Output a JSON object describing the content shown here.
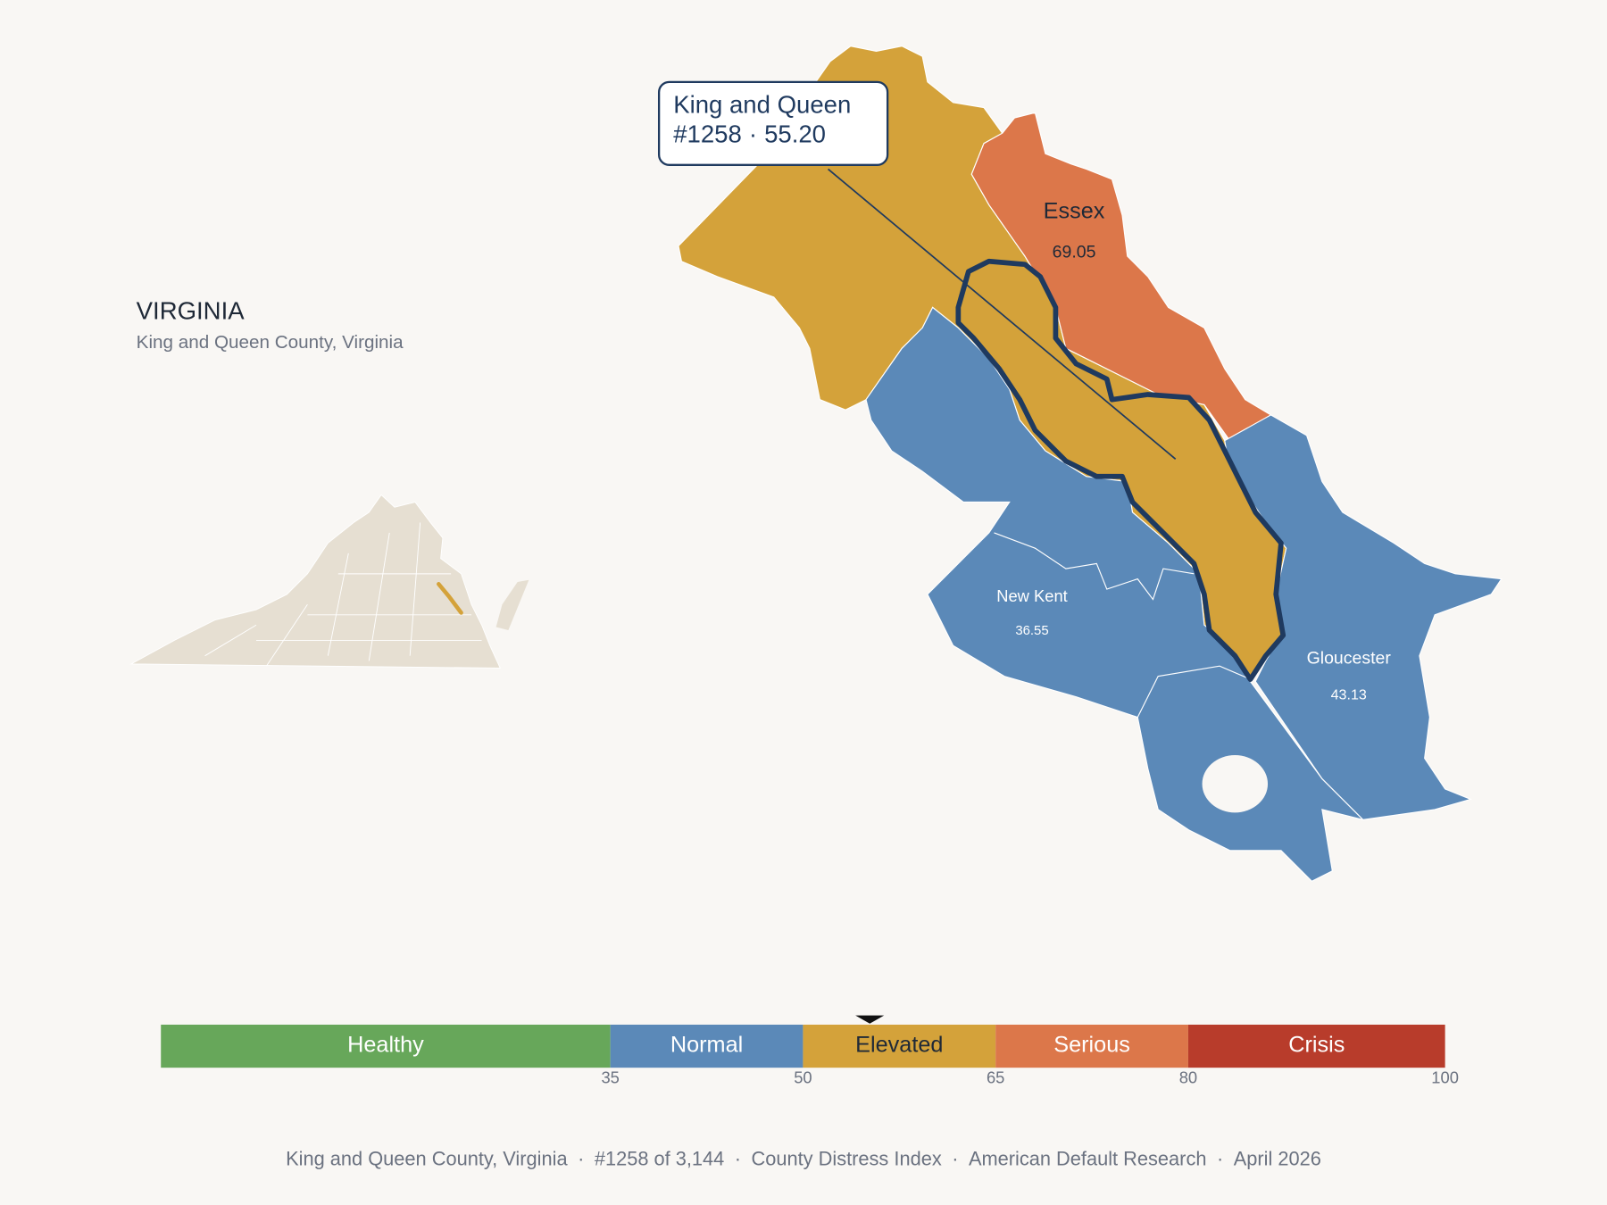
{
  "state": {
    "title": "VIRGINIA",
    "subtitle": "King and Queen County, Virginia"
  },
  "callout": {
    "name": "King and Queen",
    "rank": "#1258",
    "separator": "·",
    "score": {
      "value": 55.2,
      "label": "55.20"
    }
  },
  "counties": [
    {
      "name": "Essex",
      "score": 69.05
    },
    {
      "name": "New Kent",
      "score": 36.55
    },
    {
      "name": "Gloucester",
      "score": 43.13
    }
  ],
  "scale": {
    "lim": [
      0,
      100
    ],
    "ticks": [
      35,
      50,
      65,
      80,
      100
    ],
    "bands": [
      {
        "name": "Healthy",
        "color": "#67a75a",
        "text_color": "#ffffff"
      },
      {
        "name": "Normal",
        "color": "#5b89b8",
        "text_color": "#ffffff"
      },
      {
        "name": "Elevated",
        "color": "#d4a23a",
        "text_color": "#1f2937"
      },
      {
        "name": "Serious",
        "color": "#dc774a",
        "text_color": "#ffffff"
      },
      {
        "name": "Crisis",
        "color": "#b83c2b",
        "text_color": "#ffffff"
      }
    ]
  },
  "footer": {
    "separator": "·",
    "items": [
      "King and Queen County, Virginia",
      "#1258 of 3,144",
      "County Distress Index",
      "American Default Research",
      "April 2026"
    ]
  }
}
